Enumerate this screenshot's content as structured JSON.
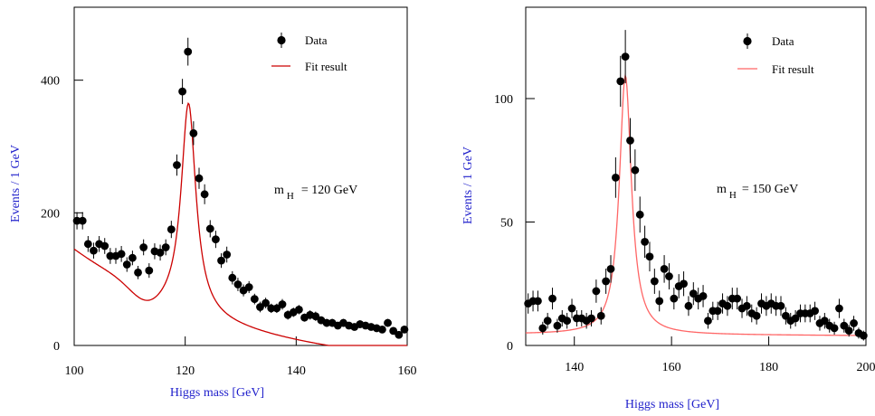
{
  "chart_data": [
    {
      "type": "scatter",
      "ylabel": "Events / 1 GeV",
      "xlabel": "Higgs mass  [GeV]",
      "xlim": [
        100,
        160
      ],
      "ylim": [
        0,
        510
      ],
      "xticks": [
        100,
        120,
        140,
        160
      ],
      "yticks": [
        0,
        200,
        400
      ],
      "legend_placement": "top-right",
      "annotation": {
        "main": "m",
        "sub": "H",
        "value": "= 120  GeV"
      },
      "series": [
        {
          "name": "Data",
          "kind": "points-with-errors",
          "points": [
            {
              "x": 100.5,
              "y": 188,
              "err": 13
            },
            {
              "x": 101.5,
              "y": 188,
              "err": 13
            },
            {
              "x": 102.5,
              "y": 153,
              "err": 12
            },
            {
              "x": 103.5,
              "y": 143,
              "err": 12
            },
            {
              "x": 104.5,
              "y": 153,
              "err": 12
            },
            {
              "x": 105.5,
              "y": 150,
              "err": 12
            },
            {
              "x": 106.5,
              "y": 135,
              "err": 12
            },
            {
              "x": 107.5,
              "y": 135,
              "err": 12
            },
            {
              "x": 108.5,
              "y": 138,
              "err": 12
            },
            {
              "x": 109.5,
              "y": 122,
              "err": 11
            },
            {
              "x": 110.5,
              "y": 132,
              "err": 11
            },
            {
              "x": 111.5,
              "y": 110,
              "err": 10
            },
            {
              "x": 112.5,
              "y": 148,
              "err": 12
            },
            {
              "x": 113.5,
              "y": 113,
              "err": 11
            },
            {
              "x": 114.5,
              "y": 142,
              "err": 12
            },
            {
              "x": 115.5,
              "y": 140,
              "err": 12
            },
            {
              "x": 116.5,
              "y": 148,
              "err": 12
            },
            {
              "x": 117.5,
              "y": 175,
              "err": 13
            },
            {
              "x": 118.5,
              "y": 272,
              "err": 16
            },
            {
              "x": 119.5,
              "y": 383,
              "err": 19
            },
            {
              "x": 120.5,
              "y": 443,
              "err": 21
            },
            {
              "x": 121.5,
              "y": 320,
              "err": 18
            },
            {
              "x": 122.5,
              "y": 252,
              "err": 16
            },
            {
              "x": 123.5,
              "y": 228,
              "err": 15
            },
            {
              "x": 124.5,
              "y": 176,
              "err": 13
            },
            {
              "x": 125.5,
              "y": 160,
              "err": 13
            },
            {
              "x": 126.5,
              "y": 128,
              "err": 11
            },
            {
              "x": 127.5,
              "y": 137,
              "err": 12
            },
            {
              "x": 128.5,
              "y": 102,
              "err": 10
            },
            {
              "x": 129.5,
              "y": 92,
              "err": 10
            },
            {
              "x": 130.5,
              "y": 83,
              "err": 9
            },
            {
              "x": 131.5,
              "y": 88,
              "err": 9
            },
            {
              "x": 132.5,
              "y": 70,
              "err": 8
            },
            {
              "x": 133.5,
              "y": 58,
              "err": 8
            },
            {
              "x": 134.5,
              "y": 64,
              "err": 8
            },
            {
              "x": 135.5,
              "y": 56,
              "err": 7
            },
            {
              "x": 136.5,
              "y": 56,
              "err": 7
            },
            {
              "x": 137.5,
              "y": 62,
              "err": 8
            },
            {
              "x": 138.5,
              "y": 46,
              "err": 7
            },
            {
              "x": 139.5,
              "y": 50,
              "err": 7
            },
            {
              "x": 140.5,
              "y": 54,
              "err": 7
            },
            {
              "x": 141.5,
              "y": 42,
              "err": 6
            },
            {
              "x": 142.5,
              "y": 46,
              "err": 7
            },
            {
              "x": 143.5,
              "y": 44,
              "err": 7
            },
            {
              "x": 144.5,
              "y": 38,
              "err": 6
            },
            {
              "x": 145.5,
              "y": 34,
              "err": 6
            },
            {
              "x": 146.5,
              "y": 34,
              "err": 6
            },
            {
              "x": 147.5,
              "y": 30,
              "err": 5
            },
            {
              "x": 148.5,
              "y": 34,
              "err": 6
            },
            {
              "x": 149.5,
              "y": 30,
              "err": 5
            },
            {
              "x": 150.5,
              "y": 28,
              "err": 5
            },
            {
              "x": 151.5,
              "y": 32,
              "err": 6
            },
            {
              "x": 152.5,
              "y": 30,
              "err": 5
            },
            {
              "x": 153.5,
              "y": 28,
              "err": 5
            },
            {
              "x": 154.5,
              "y": 26,
              "err": 5
            },
            {
              "x": 155.5,
              "y": 24,
              "err": 5
            },
            {
              "x": 156.5,
              "y": 34,
              "err": 6
            },
            {
              "x": 157.5,
              "y": 22,
              "err": 5
            },
            {
              "x": 158.5,
              "y": 16,
              "err": 4
            },
            {
              "x": 159.5,
              "y": 24,
              "err": 5
            }
          ]
        },
        {
          "name": "Fit result",
          "kind": "curve",
          "color": "#cc0000",
          "model": {
            "a0": 182.5,
            "k": 0.0344,
            "c": -39,
            "dip_amp": 23,
            "dip_x0": 113,
            "dip_w": 4,
            "peak_amp": 315,
            "peak_x0": 120.6,
            "peak_gamma": 1.6
          }
        }
      ]
    },
    {
      "type": "scatter",
      "ylabel": "Events / 1 GeV",
      "xlabel": "Higgs mass    [GeV]",
      "xlim": [
        130,
        200
      ],
      "ylim": [
        0,
        137
      ],
      "xticks": [
        140,
        160,
        180,
        200
      ],
      "yticks": [
        0,
        50,
        100
      ],
      "legend_placement": "top-right",
      "annotation": {
        "main": "m",
        "sub": "H",
        "value": "= 150 GeV"
      },
      "series": [
        {
          "name": "Data",
          "kind": "points-with-errors",
          "points": [
            {
              "x": 130.5,
              "y": 17,
              "err": 4.1
            },
            {
              "x": 131.5,
              "y": 18,
              "err": 4.2
            },
            {
              "x": 132.5,
              "y": 18,
              "err": 4.2
            },
            {
              "x": 133.5,
              "y": 7,
              "err": 2.6
            },
            {
              "x": 134.5,
              "y": 10,
              "err": 3.2
            },
            {
              "x": 135.5,
              "y": 19,
              "err": 4.4
            },
            {
              "x": 136.5,
              "y": 8,
              "err": 2.8
            },
            {
              "x": 137.5,
              "y": 11,
              "err": 3.3
            },
            {
              "x": 138.5,
              "y": 10,
              "err": 3.2
            },
            {
              "x": 139.5,
              "y": 15,
              "err": 3.9
            },
            {
              "x": 140.5,
              "y": 11,
              "err": 3.3
            },
            {
              "x": 141.5,
              "y": 11,
              "err": 3.3
            },
            {
              "x": 142.5,
              "y": 10,
              "err": 3.2
            },
            {
              "x": 143.5,
              "y": 11,
              "err": 3.3
            },
            {
              "x": 144.5,
              "y": 22,
              "err": 4.7
            },
            {
              "x": 145.5,
              "y": 12,
              "err": 3.5
            },
            {
              "x": 146.5,
              "y": 26,
              "err": 5.1
            },
            {
              "x": 147.5,
              "y": 31,
              "err": 5.6
            },
            {
              "x": 148.5,
              "y": 68,
              "err": 8.2
            },
            {
              "x": 149.5,
              "y": 107,
              "err": 10.3
            },
            {
              "x": 150.5,
              "y": 117,
              "err": 10.8
            },
            {
              "x": 151.5,
              "y": 83,
              "err": 9.1
            },
            {
              "x": 152.5,
              "y": 71,
              "err": 8.4
            },
            {
              "x": 153.5,
              "y": 53,
              "err": 7.3
            },
            {
              "x": 154.5,
              "y": 42,
              "err": 6.5
            },
            {
              "x": 155.5,
              "y": 36,
              "err": 6
            },
            {
              "x": 156.5,
              "y": 26,
              "err": 5.1
            },
            {
              "x": 157.5,
              "y": 18,
              "err": 4.2
            },
            {
              "x": 158.5,
              "y": 31,
              "err": 5.6
            },
            {
              "x": 159.5,
              "y": 28,
              "err": 5.3
            },
            {
              "x": 160.5,
              "y": 19,
              "err": 4.4
            },
            {
              "x": 161.5,
              "y": 24,
              "err": 4.9
            },
            {
              "x": 162.5,
              "y": 25,
              "err": 5
            },
            {
              "x": 163.5,
              "y": 16,
              "err": 4
            },
            {
              "x": 164.5,
              "y": 21,
              "err": 4.6
            },
            {
              "x": 165.5,
              "y": 19,
              "err": 4.4
            },
            {
              "x": 166.5,
              "y": 20,
              "err": 4.5
            },
            {
              "x": 167.5,
              "y": 10,
              "err": 3.2
            },
            {
              "x": 168.5,
              "y": 14,
              "err": 3.7
            },
            {
              "x": 169.5,
              "y": 14,
              "err": 3.7
            },
            {
              "x": 170.5,
              "y": 17,
              "err": 4.1
            },
            {
              "x": 171.5,
              "y": 16,
              "err": 4
            },
            {
              "x": 172.5,
              "y": 19,
              "err": 4.4
            },
            {
              "x": 173.5,
              "y": 19,
              "err": 4.4
            },
            {
              "x": 174.5,
              "y": 15,
              "err": 3.9
            },
            {
              "x": 175.5,
              "y": 16,
              "err": 4
            },
            {
              "x": 176.5,
              "y": 13,
              "err": 3.6
            },
            {
              "x": 177.5,
              "y": 12,
              "err": 3.5
            },
            {
              "x": 178.5,
              "y": 17,
              "err": 4.1
            },
            {
              "x": 179.5,
              "y": 16,
              "err": 4
            },
            {
              "x": 180.5,
              "y": 17,
              "err": 4.1
            },
            {
              "x": 181.5,
              "y": 16,
              "err": 4
            },
            {
              "x": 182.5,
              "y": 16,
              "err": 4
            },
            {
              "x": 183.5,
              "y": 12,
              "err": 3.5
            },
            {
              "x": 184.5,
              "y": 10,
              "err": 3.2
            },
            {
              "x": 185.5,
              "y": 11,
              "err": 3.3
            },
            {
              "x": 186.5,
              "y": 13,
              "err": 3.6
            },
            {
              "x": 187.5,
              "y": 13,
              "err": 3.6
            },
            {
              "x": 188.5,
              "y": 13,
              "err": 3.6
            },
            {
              "x": 189.5,
              "y": 14,
              "err": 3.7
            },
            {
              "x": 190.5,
              "y": 9,
              "err": 3
            },
            {
              "x": 191.5,
              "y": 10,
              "err": 3.2
            },
            {
              "x": 192.5,
              "y": 8,
              "err": 2.8
            },
            {
              "x": 193.5,
              "y": 7,
              "err": 2.6
            },
            {
              "x": 194.5,
              "y": 15,
              "err": 3.9
            },
            {
              "x": 195.5,
              "y": 8,
              "err": 2.8
            },
            {
              "x": 196.5,
              "y": 6,
              "err": 2.4
            },
            {
              "x": 197.5,
              "y": 9,
              "err": 3
            },
            {
              "x": 198.5,
              "y": 5,
              "err": 2.2
            },
            {
              "x": 199.5,
              "y": 4,
              "err": 2
            }
          ]
        },
        {
          "name": "Fit result",
          "kind": "curve",
          "color": "#ff6666",
          "model": {
            "a0": 12.7,
            "k": 0.0007,
            "c": -7.9,
            "dip_amp": 0,
            "dip_x0": 0,
            "dip_w": 1,
            "peak_amp": 105,
            "peak_x0": 150.5,
            "peak_gamma": 1.5
          }
        }
      ]
    }
  ]
}
